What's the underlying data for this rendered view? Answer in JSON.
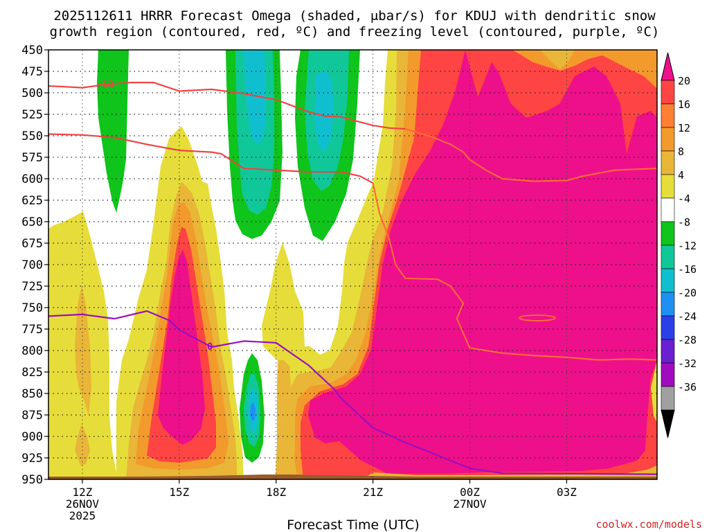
{
  "chart_data": {
    "type": "heatmap",
    "title_line1": "2025112611 HRRR Forecast Omega (shaded, μbar/s) for KDUJ with dendritic snow",
    "title_line2": "growth region (contoured, red, ºC) and freezing level (contoured, purple, ºC)",
    "xlabel": "Forecast Time (UTC)",
    "ylabel": "",
    "credit": "coolwx.com/models",
    "x_range_hours": [
      10.95,
      29.8
    ],
    "y_range_mb": [
      450,
      950
    ],
    "y_ticks": [
      450,
      475,
      500,
      525,
      550,
      575,
      600,
      625,
      650,
      675,
      700,
      725,
      750,
      775,
      800,
      825,
      850,
      875,
      900,
      925,
      950
    ],
    "x_ticks": [
      {
        "hour": 12,
        "label": "12Z",
        "sub1": "26NOV",
        "sub2": "2025"
      },
      {
        "hour": 15,
        "label": "15Z",
        "sub1": "",
        "sub2": ""
      },
      {
        "hour": 18,
        "label": "18Z",
        "sub1": "",
        "sub2": ""
      },
      {
        "hour": 21,
        "label": "21Z",
        "sub1": "",
        "sub2": ""
      },
      {
        "hour": 24,
        "label": "00Z",
        "sub1": "27NOV",
        "sub2": ""
      },
      {
        "hour": 27,
        "label": "03Z",
        "sub1": "",
        "sub2": ""
      }
    ],
    "colorbar": {
      "ticks": [
        "20",
        "16",
        "12",
        "8",
        "4",
        "-4",
        "-8",
        "-12",
        "-16",
        "-20",
        "-24",
        "-28",
        "-32",
        "-36"
      ],
      "top_arrow_color": "#ee0f8a",
      "bottom_arrow_color": "#000000",
      "segments": [
        "#ff4444",
        "#ff7f33",
        "#f39a2c",
        "#e9b637",
        "#e6dd3a",
        "#ffffff",
        "#0fc41b",
        "#10c79a",
        "#10bfcf",
        "#1e90f3",
        "#2b3fe8",
        "#6a1fd2",
        "#a10bc0",
        "#a0a0a0"
      ]
    },
    "series": [
      {
        "name": "dendritic -18C contour (upper)",
        "color": "#ee4444",
        "label": "-18",
        "points": [
          [
            10.95,
            492
          ],
          [
            11.5,
            493
          ],
          [
            12,
            494
          ],
          [
            12.8,
            490
          ],
          [
            13.5,
            488
          ],
          [
            14.2,
            488
          ],
          [
            15,
            498
          ],
          [
            16,
            496
          ],
          [
            17,
            501
          ],
          [
            18,
            508
          ],
          [
            19,
            522
          ],
          [
            19.5,
            527
          ],
          [
            20,
            528
          ],
          [
            20.5,
            533
          ],
          [
            21,
            538
          ],
          [
            21.5,
            541
          ],
          [
            22,
            542
          ]
        ]
      },
      {
        "name": "dendritic -12C contour (lower)",
        "color": "#ee4444",
        "label": "",
        "points": [
          [
            10.95,
            548
          ],
          [
            12,
            549
          ],
          [
            13,
            552
          ],
          [
            14,
            560
          ],
          [
            15,
            567
          ],
          [
            16,
            569
          ],
          [
            16.3,
            571
          ],
          [
            17,
            588
          ],
          [
            18,
            590
          ],
          [
            19,
            592
          ],
          [
            20,
            592
          ],
          [
            20.6,
            597
          ],
          [
            21,
            605
          ]
        ]
      },
      {
        "name": "dendritic contour (middle branch)",
        "color": "#ff6a3a",
        "label": "",
        "points": [
          [
            22,
            542
          ],
          [
            22.8,
            551
          ],
          [
            23.4,
            560
          ],
          [
            23.8,
            569
          ],
          [
            24,
            578
          ],
          [
            24.5,
            590
          ],
          [
            25,
            600
          ],
          [
            26,
            603
          ],
          [
            27,
            602
          ],
          [
            27.5,
            597
          ],
          [
            28.5,
            590
          ],
          [
            29.8,
            588
          ]
        ]
      },
      {
        "name": "dendritic contour (lower branch)",
        "color": "#ff6a3a",
        "label": "",
        "points": [
          [
            21,
            605
          ],
          [
            21.2,
            640
          ],
          [
            21.5,
            670
          ],
          [
            21.7,
            700
          ],
          [
            22,
            716
          ],
          [
            23,
            717
          ],
          [
            23.4,
            725
          ],
          [
            23.8,
            745
          ],
          [
            23.6,
            763
          ],
          [
            24,
            797
          ],
          [
            25,
            803
          ],
          [
            26,
            806
          ],
          [
            27,
            808
          ],
          [
            28,
            811
          ],
          [
            29,
            810
          ],
          [
            29.8,
            811
          ]
        ]
      },
      {
        "name": "freezing level 0C",
        "color": "#9a10bf",
        "label": "0",
        "points": [
          [
            10.95,
            760
          ],
          [
            12,
            758
          ],
          [
            13,
            763
          ],
          [
            14,
            754
          ],
          [
            14.7,
            765
          ],
          [
            15,
            776
          ],
          [
            16,
            796
          ],
          [
            17,
            789
          ],
          [
            18,
            791
          ],
          [
            19,
            817
          ],
          [
            19.8,
            845
          ],
          [
            20,
            855
          ],
          [
            21,
            890
          ],
          [
            22,
            907
          ],
          [
            23,
            922
          ],
          [
            24,
            937
          ],
          [
            25,
            943
          ],
          [
            29.8,
            944
          ]
        ]
      }
    ],
    "omega_regions": [
      {
        "level": "4 to 8",
        "color": "#e6dd3a"
      },
      {
        "level": "8 to 12",
        "color": "#e9b637"
      },
      {
        "level": "12 to 16",
        "color": "#f39a2c"
      },
      {
        "level": "16 to 20",
        "color": "#ff4444"
      },
      {
        "level": "> 20",
        "color": "#ee0f8a"
      },
      {
        "level": "-4 to -8",
        "color": "#0fc41b"
      },
      {
        "level": "-8 to -12",
        "color": "#10c79a"
      },
      {
        "level": "-12 to -16",
        "color": "#10bfcf"
      },
      {
        "level": "-16 to -20",
        "color": "#1e90f3"
      }
    ]
  }
}
